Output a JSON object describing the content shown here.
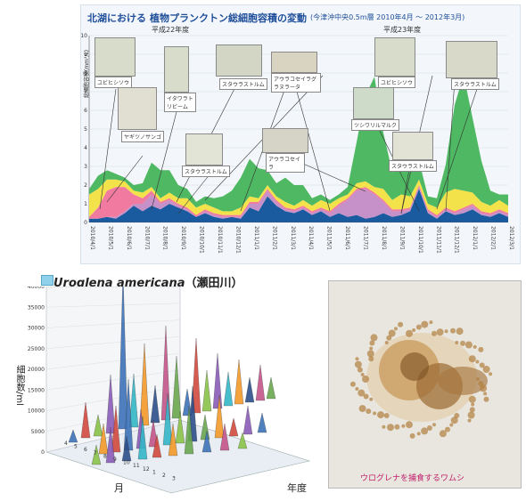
{
  "top_chart": {
    "title_left": "北湖における",
    "title_main": "植物プランクトン総細胞容積の変動",
    "title_note": "(今津沖中央0.5m層 2010年4月 〜 2012年3月)",
    "year_label_1": "平成22年度",
    "year_label_2": "平成23年度",
    "ylabel": "総細胞容積(mm³/L)",
    "photo_labels": [
      "ユビヒシソウ",
      "ヤギツノサンゴ",
      "イタワラトリビーム",
      "スタウラストルム",
      "アウラコセイラグラヌラータ",
      "スタウラストルム",
      "アウラコセイラ",
      "ユビヒシソウ",
      "スタウラストルム",
      "ツシワリルマルク",
      "スタウラストルム"
    ],
    "colors": {
      "green": "#4fb862",
      "yellow": "#f3e24a",
      "pink": "#f07aa0",
      "purple": "#c690c8",
      "blue": "#1a5a9e"
    }
  },
  "chart_data": {
    "type": "area",
    "title": "植物プランクトン総細胞容積の変動",
    "xlabel": "",
    "ylabel": "総細胞容積(mm³/L)",
    "ylim": [
      0,
      10
    ],
    "yticks": [
      0,
      1,
      2,
      3,
      4,
      5,
      6,
      7,
      8,
      9,
      10
    ],
    "x_tick_labels": [
      "2010/4/1",
      "2010/5/1",
      "2010/6/1",
      "2010/7/1",
      "2010/8/1",
      "2010/9/1",
      "2010/10/1",
      "2010/11/1",
      "2010/12/1",
      "2011/1/1",
      "2011/2/1",
      "2011/3/1",
      "2011/4/1",
      "2011/5/1",
      "2011/6/1",
      "2011/7/1",
      "2011/8/1",
      "2011/9/1",
      "2011/10/1",
      "2011/11/1",
      "2011/12/1",
      "2012/1/1",
      "2012/2/1",
      "2012/3/1"
    ],
    "series": [
      {
        "color": "#1a5a9e",
        "values": [
          0.2,
          0.2,
          0.3,
          0.2,
          0.5,
          0.9,
          0.6,
          0.9,
          0.7,
          1.0,
          0.8,
          0.6,
          0.3,
          0.5,
          0.3,
          0.2,
          0.3,
          0.2,
          0.8,
          0.6,
          1.4,
          0.9,
          0.6,
          0.5,
          0.7,
          0.4,
          0.6,
          0.3,
          0.5,
          0.3,
          0.4,
          0.2,
          0.3,
          0.5,
          0.3,
          0.4,
          0.6,
          1.8,
          0.5,
          0.2,
          0.6,
          0.4,
          0.5,
          0.7,
          0.4,
          0.3,
          0.5,
          0.3
        ]
      },
      {
        "color": "#c690c8",
        "values": [
          0.0,
          0.0,
          0.0,
          0.1,
          0.1,
          0.1,
          0.4,
          0.6,
          0.3,
          0.2,
          0.1,
          0.1,
          0.0,
          0.1,
          0.1,
          0.1,
          0.0,
          0.1,
          0.2,
          0.4,
          0.3,
          0.2,
          0.1,
          0.1,
          0.1,
          0.1,
          0.1,
          0.2,
          0.4,
          0.9,
          1.3,
          1.6,
          1.2,
          0.6,
          0.3,
          0.2,
          0.1,
          0.1,
          0.1,
          0.1,
          0.1,
          0.1,
          0.2,
          0.2,
          0.1,
          0.1,
          0.1,
          0.1
        ]
      },
      {
        "color": "#f07aa0",
        "values": [
          0.1,
          0.6,
          1.4,
          1.6,
          1.3,
          0.5,
          0.3,
          0.2,
          0.1,
          0.1,
          0.1,
          0.1,
          0.1,
          0.1,
          0.1,
          0.1,
          0.1,
          0.1,
          0.1,
          0.1,
          0.1,
          0.1,
          0.1,
          0.1,
          0.1,
          0.1,
          0.1,
          0.1,
          0.1,
          0.1,
          0.1,
          0.1,
          0.1,
          0.1,
          0.1,
          0.1,
          0.1,
          0.1,
          0.1,
          0.1,
          0.1,
          0.1,
          0.1,
          0.1,
          0.1,
          0.1,
          0.1,
          0.1
        ]
      },
      {
        "color": "#f3e24a",
        "values": [
          1.2,
          1.0,
          0.6,
          0.4,
          0.3,
          0.2,
          0.3,
          0.2,
          0.2,
          0.3,
          0.3,
          0.5,
          0.4,
          0.3,
          0.3,
          0.2,
          0.2,
          0.4,
          0.3,
          0.2,
          0.2,
          0.2,
          0.3,
          0.2,
          0.3,
          0.3,
          0.4,
          0.4,
          0.3,
          0.2,
          0.3,
          0.3,
          0.3,
          0.6,
          0.5,
          0.8,
          0.6,
          0.3,
          0.3,
          0.4,
          0.8,
          1.2,
          0.9,
          0.6,
          0.5,
          0.4,
          0.5,
          0.4
        ]
      },
      {
        "color": "#4fb862",
        "values": [
          0.3,
          0.7,
          0.5,
          0.3,
          0.2,
          0.3,
          0.5,
          1.3,
          1.5,
          1.2,
          0.7,
          0.5,
          0.3,
          0.4,
          0.5,
          0.8,
          1.1,
          1.6,
          2.0,
          1.6,
          0.8,
          0.7,
          1.3,
          1.1,
          0.8,
          0.4,
          0.3,
          0.2,
          0.2,
          0.4,
          2.2,
          4.6,
          5.9,
          3.0,
          1.5,
          1.3,
          1.4,
          1.0,
          0.4,
          0.5,
          1.5,
          4.5,
          6.2,
          4.0,
          2.2,
          0.8,
          0.3,
          0.6
        ]
      }
    ]
  },
  "bottom_chart": {
    "title": "Uroglena americana",
    "title_jp": "（瀬田川）",
    "ylabel": "細胞数/ml",
    "month_axis_label": "月",
    "year_axis_label": "年度",
    "y_ticks": [
      "0",
      "5000",
      "10000",
      "15000",
      "20000",
      "25000",
      "30000",
      "35000",
      "40000"
    ],
    "month_ticks": [
      "4",
      "5",
      "6",
      "7",
      "8",
      "9",
      "10",
      "11",
      "12",
      "1",
      "2",
      "3"
    ]
  },
  "photo_caption": "ウログレナを捕食するワムシ"
}
